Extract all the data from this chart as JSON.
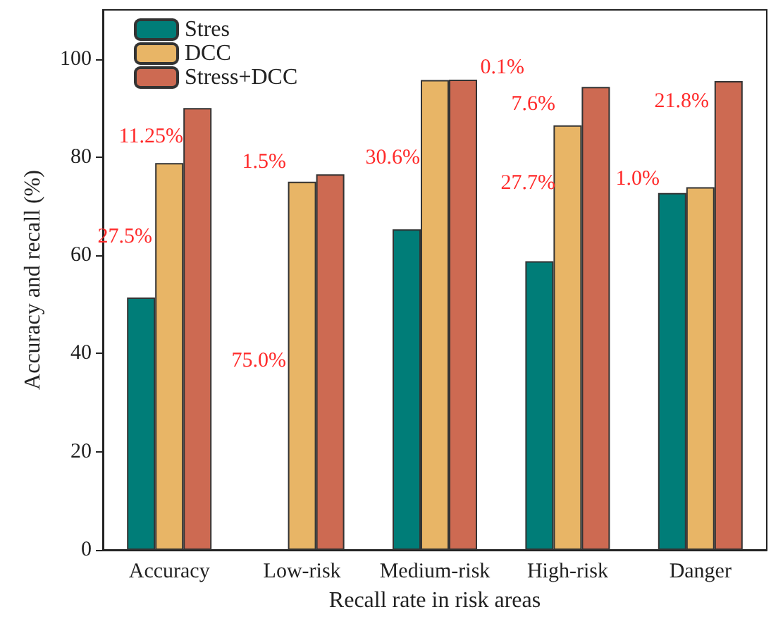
{
  "chart_data": {
    "type": "bar",
    "xlabel": "Recall rate in risk areas",
    "ylabel": "Accuracy and recall (%)",
    "categories": [
      "Accuracy",
      "Low-risk",
      "Medium-risk",
      "High-risk",
      "Danger"
    ],
    "series": [
      {
        "name": "Stres",
        "color": "#007d78",
        "values": [
          51.4,
          null,
          65.3,
          58.8,
          72.7
        ]
      },
      {
        "name": "DCC",
        "color": "#e8b566",
        "values": [
          78.8,
          75.0,
          95.7,
          86.5,
          73.9
        ]
      },
      {
        "name": "Stress+DCC",
        "color": "#cd6a52",
        "values": [
          90.0,
          76.5,
          95.8,
          94.3,
          95.5
        ]
      }
    ],
    "ylim": [
      0,
      110
    ],
    "yticks": [
      0,
      20,
      40,
      60,
      80,
      100
    ],
    "grid": false,
    "legend": "top left",
    "annotations": [
      "11.25%",
      "27.5%",
      "1.5%",
      "75.0%",
      "30.6%",
      "0.1%",
      "7.6%",
      "27.7%",
      "21.8%",
      "1.0%"
    ]
  }
}
